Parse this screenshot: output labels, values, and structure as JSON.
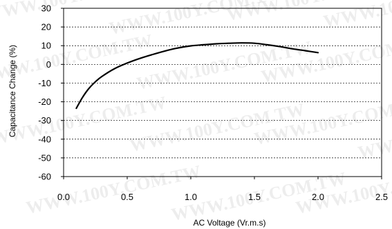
{
  "chart_data": {
    "type": "line",
    "xlabel": "AC Voltage (Vr.m.s)",
    "ylabel": "Capacitance Change (%)",
    "xlim": [
      0.0,
      2.5
    ],
    "ylim": [
      -60,
      30
    ],
    "x_ticks": [
      "0.0",
      "0.5",
      "1.0",
      "1.5",
      "2.0",
      "2.5"
    ],
    "y_ticks": [
      "30",
      "20",
      "10",
      "0",
      "-10",
      "-20",
      "-30",
      "-40",
      "-50",
      "-60"
    ],
    "x_tick_values": [
      0.0,
      0.5,
      1.0,
      1.5,
      2.0,
      2.5
    ],
    "y_tick_values": [
      30,
      20,
      10,
      0,
      -10,
      -20,
      -30,
      -40,
      -50,
      -60
    ],
    "grid": "horizontal dashed",
    "series": [
      {
        "x": [
          0.1,
          0.15,
          0.2,
          0.25,
          0.3,
          0.4,
          0.5,
          0.6,
          0.7,
          0.8,
          0.9,
          1.0,
          1.1,
          1.2,
          1.3,
          1.4,
          1.5,
          1.6,
          1.7,
          1.8,
          1.9,
          2.0
        ],
        "values": [
          -23.5,
          -17.5,
          -12.8,
          -9.3,
          -6.5,
          -2.3,
          0.7,
          3.2,
          5.3,
          7.2,
          8.8,
          9.9,
          10.5,
          11.0,
          11.3,
          11.5,
          11.3,
          10.5,
          9.5,
          8.3,
          7.3,
          6.3
        ],
        "color": "#000000"
      }
    ]
  },
  "watermark": "WWW.100Y.COM.TW"
}
